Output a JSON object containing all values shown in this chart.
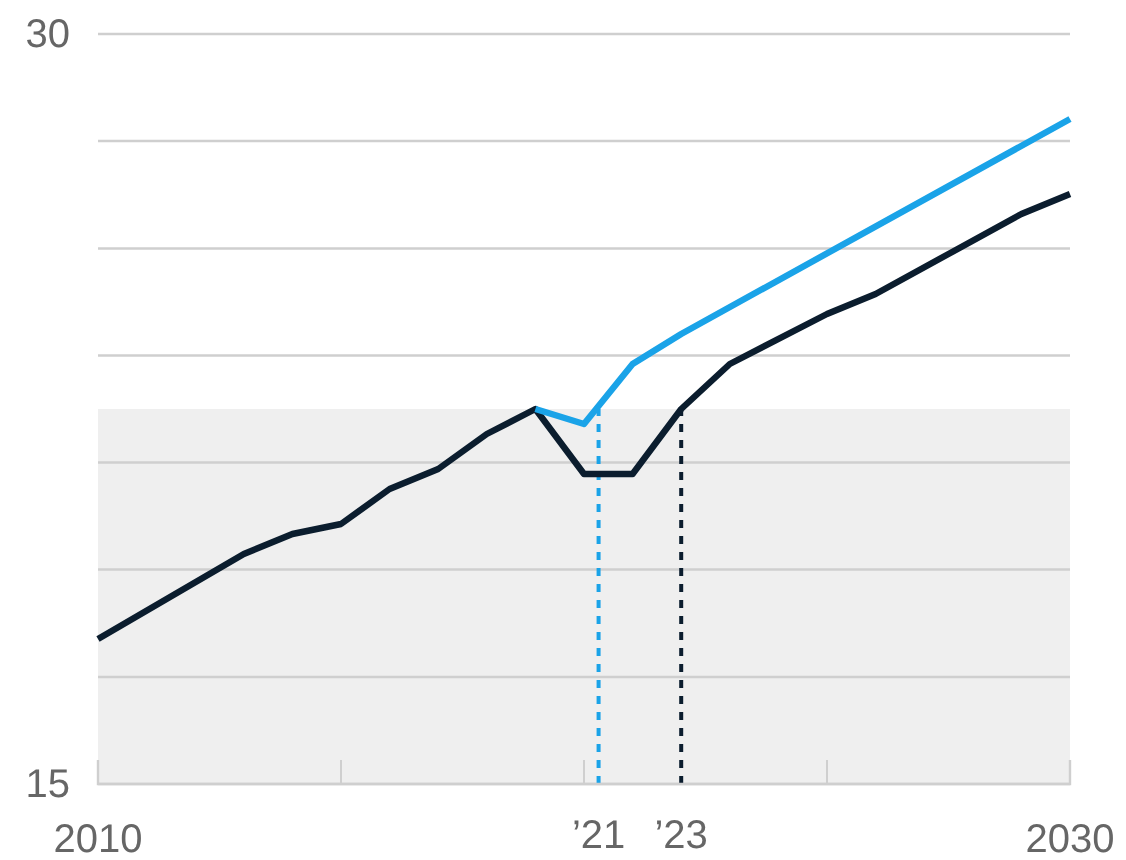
{
  "chart_data": {
    "type": "line",
    "series": [
      {
        "color": "#0b1d2e",
        "x": [
          2010,
          2013,
          2014,
          2015,
          2016,
          2017,
          2018,
          2019,
          2020,
          2021,
          2022,
          2023,
          2025,
          2026,
          2027.5,
          2029,
          2030
        ],
        "values": [
          17.9,
          19.6,
          20.0,
          20.2,
          20.9,
          21.3,
          22.0,
          22.5,
          21.2,
          21.2,
          22.5,
          23.4,
          24.4,
          24.8,
          25.6,
          26.4,
          26.8
        ]
      },
      {
        "color": "#1aa3e8",
        "x": [
          2019,
          2020,
          2021,
          2022,
          2030
        ],
        "values": [
          22.5,
          22.2,
          23.4,
          24.0,
          28.3
        ]
      }
    ],
    "xlim": [
      2010,
      2030
    ],
    "xticks": [
      2010,
      {
        "value": 2015,
        "label": null
      },
      {
        "value": 2020,
        "label": null
      },
      {
        "value": 2025,
        "label": null
      },
      2030
    ],
    "ylim": [
      15,
      30
    ],
    "yticks": [
      15,
      {
        "value": 17.14,
        "label": null
      },
      {
        "value": 19.29,
        "label": null
      },
      {
        "value": 21.43,
        "label": null
      },
      {
        "value": 23.57,
        "label": null
      },
      {
        "value": 25.71,
        "label": null
      },
      {
        "value": 27.86,
        "label": null
      },
      30
    ],
    "grid": "y",
    "ref_lines": [
      {
        "axis": "x",
        "value": 2020.3,
        "label": "’21",
        "color": "#1aa3e8",
        "line_style": "dashed"
      },
      {
        "axis": "x",
        "value": 2022,
        "label": "’23",
        "color": "#0b1d2e",
        "line_style": "dashed"
      }
    ],
    "bands": [
      {
        "axis": "y",
        "from": 15,
        "to": 22.5,
        "color": "#efefef"
      }
    ]
  }
}
